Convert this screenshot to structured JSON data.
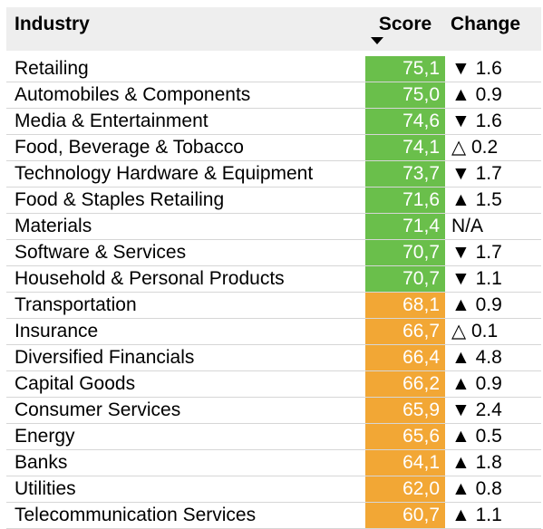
{
  "chart_data": {
    "type": "table",
    "columns": [
      "Industry",
      "Score",
      "Change"
    ],
    "sort": {
      "column": "Score",
      "direction": "descending"
    },
    "colors": {
      "header_background": "#eeeeee",
      "score_high": "#6abf4b",
      "score_mid": "#f2a735",
      "row_divider": "#d6d6d6",
      "score_text": "#ffffff"
    },
    "rows": [
      {
        "industry": "Retailing",
        "score": "75,1",
        "value": 75.1,
        "change": "▼ 1.6",
        "tier": "high"
      },
      {
        "industry": "Automobiles & Components",
        "score": "75,0",
        "value": 75.0,
        "change": "▲ 0.9",
        "tier": "high"
      },
      {
        "industry": "Media & Entertainment",
        "score": "74,6",
        "value": 74.6,
        "change": "▼ 1.6",
        "tier": "high"
      },
      {
        "industry": "Food, Beverage & Tobacco",
        "score": "74,1",
        "value": 74.1,
        "change": "△ 0.2",
        "tier": "high"
      },
      {
        "industry": "Technology Hardware & Equipment",
        "score": "73,7",
        "value": 73.7,
        "change": "▼ 1.7",
        "tier": "high"
      },
      {
        "industry": "Food & Staples Retailing",
        "score": "71,6",
        "value": 71.6,
        "change": "▲ 1.5",
        "tier": "high"
      },
      {
        "industry": "Materials",
        "score": "71,4",
        "value": 71.4,
        "change": "N/A",
        "tier": "high"
      },
      {
        "industry": "Software & Services",
        "score": "70,7",
        "value": 70.7,
        "change": "▼ 1.7",
        "tier": "high"
      },
      {
        "industry": "Household & Personal Products",
        "score": "70,7",
        "value": 70.7,
        "change": "▼ 1.1",
        "tier": "high"
      },
      {
        "industry": "Transportation",
        "score": "68,1",
        "value": 68.1,
        "change": "▲ 0.9",
        "tier": "mid"
      },
      {
        "industry": "Insurance",
        "score": "66,7",
        "value": 66.7,
        "change": "△ 0.1",
        "tier": "mid"
      },
      {
        "industry": "Diversified Financials",
        "score": "66,4",
        "value": 66.4,
        "change": "▲ 4.8",
        "tier": "mid"
      },
      {
        "industry": "Capital Goods",
        "score": "66,2",
        "value": 66.2,
        "change": "▲ 0.9",
        "tier": "mid"
      },
      {
        "industry": "Consumer Services",
        "score": "65,9",
        "value": 65.9,
        "change": "▼ 2.4",
        "tier": "mid"
      },
      {
        "industry": "Energy",
        "score": "65,6",
        "value": 65.6,
        "change": "▲ 0.5",
        "tier": "mid"
      },
      {
        "industry": "Banks",
        "score": "64,1",
        "value": 64.1,
        "change": "▲ 1.8",
        "tier": "mid"
      },
      {
        "industry": "Utilities",
        "score": "62,0",
        "value": 62.0,
        "change": "▲ 0.8",
        "tier": "mid"
      },
      {
        "industry": "Telecommunication Services",
        "score": "60,7",
        "value": 60.7,
        "change": "▲ 1.1",
        "tier": "mid"
      }
    ]
  }
}
